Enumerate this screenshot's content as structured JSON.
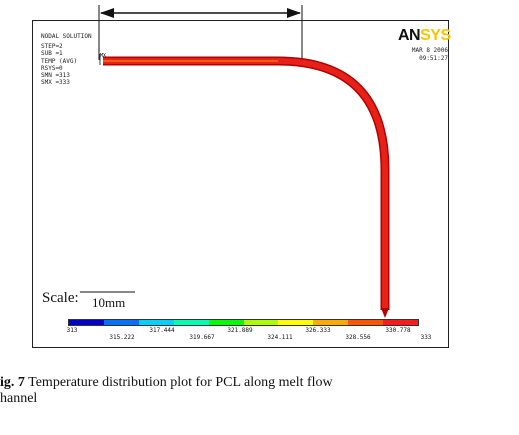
{
  "nodal": {
    "title": "NODAL SOLUTION",
    "lines": [
      "STEP=2",
      "SUB =1",
      "TEMP    (AVG)",
      "RSYS=0",
      "SMN =313",
      "SMX =333"
    ]
  },
  "small_label": "MX",
  "logo": {
    "an": "AN",
    "sys": "SYS"
  },
  "date": "MAR  8 2006",
  "time": "09:51:27",
  "scale": {
    "label": "Scale:",
    "value": "10mm"
  },
  "colors": {
    "legend": [
      "#0000cc",
      "#0072ff",
      "#00d2ff",
      "#00ffb0",
      "#00ff00",
      "#aaff00",
      "#ffff00",
      "#ffaa00",
      "#ff5500",
      "#ff1a1a"
    ],
    "channel_edge": "#b30000",
    "channel_fill": "#e8201a"
  },
  "legend_ticks_top": [
    "313",
    "317.444",
    "321.889",
    "326.333",
    "330.778"
  ],
  "legend_ticks_bottom": [
    "315.222",
    "319.667",
    "324.111",
    "328.556",
    "333"
  ],
  "caption": {
    "label": "ig. 7",
    "text": " Temperature  distribution  plot  for  PCL  along  melt  flow",
    "line2": "hannel"
  }
}
